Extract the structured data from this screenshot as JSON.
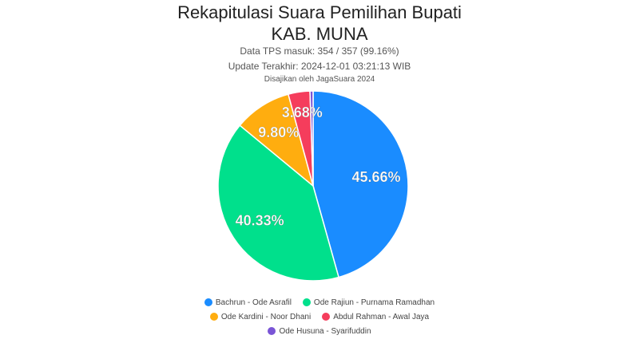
{
  "header": {
    "title_line1": "Rekapitulasi Suara Pemilihan Bupati",
    "title_line2": "KAB. MUNA",
    "tps_line": "Data TPS masuk: 354 / 357 (99.16%)",
    "update_line": "Update Terakhir: 2024-12-01 03:21:13 WIB",
    "credit_line": "Disajikan oleh JagaSuara 2024"
  },
  "chart_data": {
    "type": "pie",
    "title": "Rekapitulasi Suara Pemilihan Bupati KAB. MUNA",
    "legend_position": "bottom",
    "slices": [
      {
        "name": "Bachrun - Ode Asrafil",
        "value": 45.66,
        "label": "45.66%",
        "color": "#1a8cff"
      },
      {
        "name": "Ode Rajiun - Purnama Ramadhan",
        "value": 40.33,
        "label": "40.33%",
        "color": "#00e08c"
      },
      {
        "name": "Ode Kardini - Noor Dhani",
        "value": 9.8,
        "label": "9.80%",
        "color": "#ffad0f"
      },
      {
        "name": "Abdul Rahman - Awal Jaya",
        "value": 3.68,
        "label": "3.68%",
        "color": "#f53d5c"
      },
      {
        "name": "Ode Husuna - Syarifuddin",
        "value": 0.53,
        "label": "",
        "color": "#7a55d6"
      }
    ]
  }
}
